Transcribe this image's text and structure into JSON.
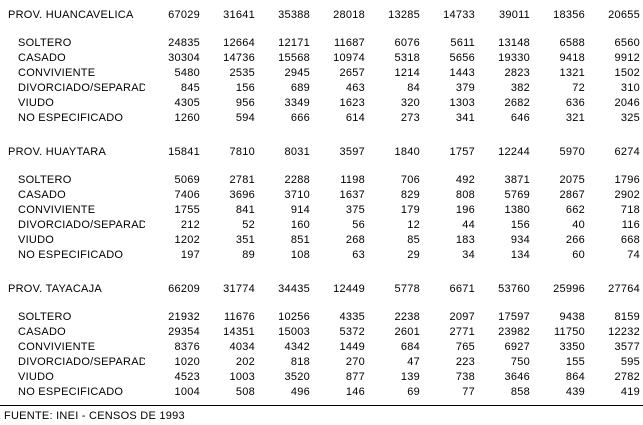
{
  "table": {
    "footer": "FUENTE: INEI - CENSOS DE 1993",
    "sections": [
      {
        "label": "PROV. HUANCAVELICA",
        "values": [
          "67029",
          "31641",
          "35388",
          "28018",
          "13285",
          "14733",
          "39011",
          "18356",
          "20655"
        ],
        "rows": [
          {
            "label": "SOLTERO",
            "values": [
              "24835",
              "12664",
              "12171",
              "11687",
              "6076",
              "5611",
              "13148",
              "6588",
              "6560"
            ]
          },
          {
            "label": "CASADO",
            "values": [
              "30304",
              "14736",
              "15568",
              "10974",
              "5318",
              "5656",
              "19330",
              "9418",
              "9912"
            ]
          },
          {
            "label": "CONVIVIENTE",
            "values": [
              "5480",
              "2535",
              "2945",
              "2657",
              "1214",
              "1443",
              "2823",
              "1321",
              "1502"
            ]
          },
          {
            "label": "DIVORCIADO/SEPARADO",
            "values": [
              "845",
              "156",
              "689",
              "463",
              "84",
              "379",
              "382",
              "72",
              "310"
            ]
          },
          {
            "label": "VIUDO",
            "values": [
              "4305",
              "956",
              "3349",
              "1623",
              "320",
              "1303",
              "2682",
              "636",
              "2046"
            ]
          },
          {
            "label": "NO ESPECIFICADO",
            "values": [
              "1260",
              "594",
              "666",
              "614",
              "273",
              "341",
              "646",
              "321",
              "325"
            ]
          }
        ]
      },
      {
        "label": "PROV. HUAYTARA",
        "values": [
          "15841",
          "7810",
          "8031",
          "3597",
          "1840",
          "1757",
          "12244",
          "5970",
          "6274"
        ],
        "rows": [
          {
            "label": "SOLTERO",
            "values": [
              "5069",
              "2781",
              "2288",
              "1198",
              "706",
              "492",
              "3871",
              "2075",
              "1796"
            ]
          },
          {
            "label": "CASADO",
            "values": [
              "7406",
              "3696",
              "3710",
              "1637",
              "829",
              "808",
              "5769",
              "2867",
              "2902"
            ]
          },
          {
            "label": "CONVIVIENTE",
            "values": [
              "1755",
              "841",
              "914",
              "375",
              "179",
              "196",
              "1380",
              "662",
              "718"
            ]
          },
          {
            "label": "DIVORCIADO/SEPARADO",
            "values": [
              "212",
              "52",
              "160",
              "56",
              "12",
              "44",
              "156",
              "40",
              "116"
            ]
          },
          {
            "label": "VIUDO",
            "values": [
              "1202",
              "351",
              "851",
              "268",
              "85",
              "183",
              "934",
              "266",
              "668"
            ]
          },
          {
            "label": "NO ESPECIFICADO",
            "values": [
              "197",
              "89",
              "108",
              "63",
              "29",
              "34",
              "134",
              "60",
              "74"
            ]
          }
        ]
      },
      {
        "label": "PROV. TAYACAJA",
        "values": [
          "66209",
          "31774",
          "34435",
          "12449",
          "5778",
          "6671",
          "53760",
          "25996",
          "27764"
        ],
        "rows": [
          {
            "label": "SOLTERO",
            "values": [
              "21932",
              "11676",
              "10256",
              "4335",
              "2238",
              "2097",
              "17597",
              "9438",
              "8159"
            ]
          },
          {
            "label": "CASADO",
            "values": [
              "29354",
              "14351",
              "15003",
              "5372",
              "2601",
              "2771",
              "23982",
              "11750",
              "12232"
            ]
          },
          {
            "label": "CONVIVIENTE",
            "values": [
              "8376",
              "4034",
              "4342",
              "1449",
              "684",
              "765",
              "6927",
              "3350",
              "3577"
            ]
          },
          {
            "label": "DIVORCIADO/SEPARADO",
            "values": [
              "1020",
              "202",
              "818",
              "270",
              "47",
              "223",
              "750",
              "155",
              "595"
            ]
          },
          {
            "label": "VIUDO",
            "values": [
              "4523",
              "1003",
              "3520",
              "877",
              "139",
              "738",
              "3646",
              "864",
              "2782"
            ]
          },
          {
            "label": "NO ESPECIFICADO",
            "values": [
              "1004",
              "508",
              "496",
              "146",
              "69",
              "77",
              "858",
              "439",
              "419"
            ]
          }
        ]
      }
    ]
  }
}
